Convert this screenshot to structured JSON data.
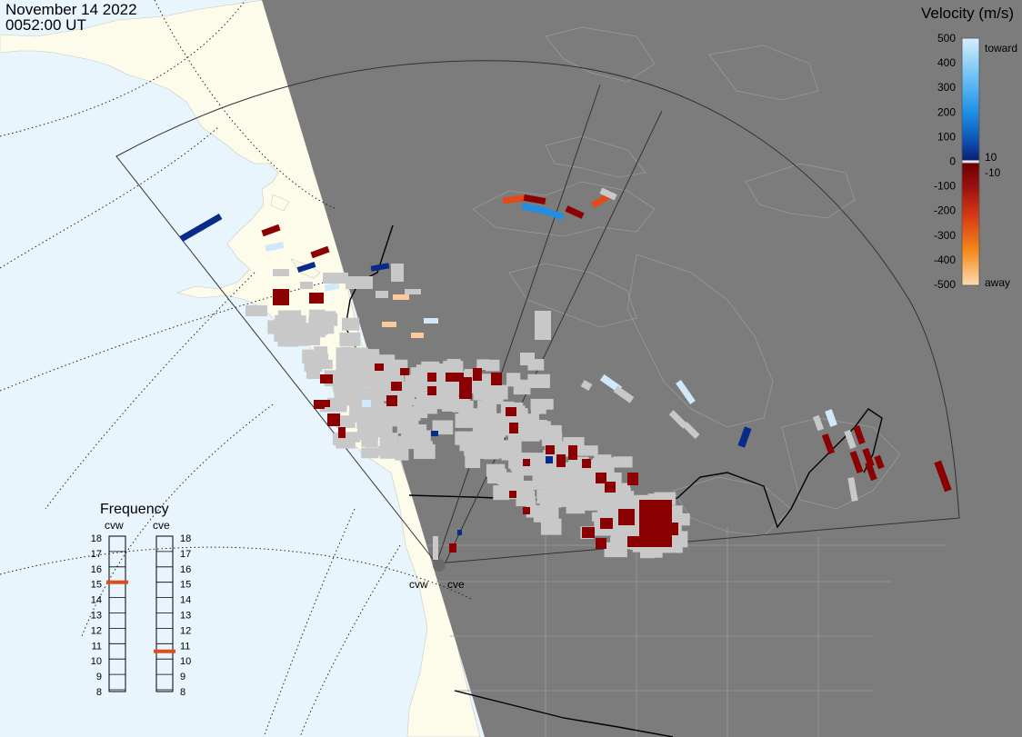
{
  "header": {
    "date": "November 14 2022",
    "time": "0052:00 UT"
  },
  "legend": {
    "title": "Velocity (m/s)",
    "ticks": [
      "500",
      "400",
      "300",
      "200",
      "100",
      "0",
      "-100",
      "-200",
      "-300",
      "-400",
      "-500"
    ],
    "inner_ticks": [
      "10",
      "-10"
    ],
    "toward_label": "toward",
    "away_label": "away",
    "colors": {
      "toward_light": "#cfe9fb",
      "toward_mid": "#1f8fe6",
      "toward_dark": "#0a2a8a",
      "ground_scatter": "#c8c8c8",
      "away_dark": "#8b0000",
      "away_mid": "#e24a1a",
      "away_light": "#fcc99a"
    }
  },
  "frequency": {
    "title": "Frequency",
    "radars": [
      {
        "name": "cvw",
        "selected_mhz": 15
      },
      {
        "name": "cve",
        "selected_mhz": 10.5
      }
    ],
    "scale": [
      "18",
      "17",
      "16",
      "15",
      "14",
      "13",
      "12",
      "11",
      "10",
      "9",
      "8"
    ]
  },
  "map": {
    "radar_labels": [
      "cvw",
      "cve"
    ],
    "colors": {
      "ocean": "#e8f5fd",
      "land_day": "#fdfbea",
      "night": "#7c7c7c",
      "boundaries": "#000000",
      "grid": "#333333"
    }
  }
}
